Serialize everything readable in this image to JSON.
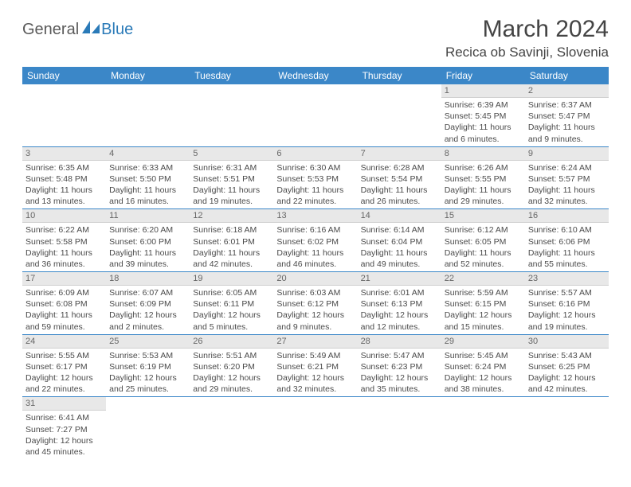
{
  "logo": {
    "part1": "General",
    "part2": "Blue"
  },
  "title": "March 2024",
  "location": "Recica ob Savinji, Slovenia",
  "headers": [
    "Sunday",
    "Monday",
    "Tuesday",
    "Wednesday",
    "Thursday",
    "Friday",
    "Saturday"
  ],
  "colors": {
    "header_bg": "#3b87c8",
    "header_text": "#ffffff",
    "daynum_bg": "#e8e8e8",
    "body_text": "#4a4a4a",
    "logo_gray": "#5a5a5a",
    "logo_blue": "#2a7ab8",
    "row_border": "#3b87c8"
  },
  "fonts": {
    "title_size": 30,
    "location_size": 17,
    "header_size": 12,
    "daynum_size": 11,
    "cell_size": 10.5
  },
  "weeks": [
    [
      null,
      null,
      null,
      null,
      null,
      {
        "n": "1",
        "sr": "Sunrise: 6:39 AM",
        "ss": "Sunset: 5:45 PM",
        "d1": "Daylight: 11 hours",
        "d2": "and 6 minutes."
      },
      {
        "n": "2",
        "sr": "Sunrise: 6:37 AM",
        "ss": "Sunset: 5:47 PM",
        "d1": "Daylight: 11 hours",
        "d2": "and 9 minutes."
      }
    ],
    [
      {
        "n": "3",
        "sr": "Sunrise: 6:35 AM",
        "ss": "Sunset: 5:48 PM",
        "d1": "Daylight: 11 hours",
        "d2": "and 13 minutes."
      },
      {
        "n": "4",
        "sr": "Sunrise: 6:33 AM",
        "ss": "Sunset: 5:50 PM",
        "d1": "Daylight: 11 hours",
        "d2": "and 16 minutes."
      },
      {
        "n": "5",
        "sr": "Sunrise: 6:31 AM",
        "ss": "Sunset: 5:51 PM",
        "d1": "Daylight: 11 hours",
        "d2": "and 19 minutes."
      },
      {
        "n": "6",
        "sr": "Sunrise: 6:30 AM",
        "ss": "Sunset: 5:53 PM",
        "d1": "Daylight: 11 hours",
        "d2": "and 22 minutes."
      },
      {
        "n": "7",
        "sr": "Sunrise: 6:28 AM",
        "ss": "Sunset: 5:54 PM",
        "d1": "Daylight: 11 hours",
        "d2": "and 26 minutes."
      },
      {
        "n": "8",
        "sr": "Sunrise: 6:26 AM",
        "ss": "Sunset: 5:55 PM",
        "d1": "Daylight: 11 hours",
        "d2": "and 29 minutes."
      },
      {
        "n": "9",
        "sr": "Sunrise: 6:24 AM",
        "ss": "Sunset: 5:57 PM",
        "d1": "Daylight: 11 hours",
        "d2": "and 32 minutes."
      }
    ],
    [
      {
        "n": "10",
        "sr": "Sunrise: 6:22 AM",
        "ss": "Sunset: 5:58 PM",
        "d1": "Daylight: 11 hours",
        "d2": "and 36 minutes."
      },
      {
        "n": "11",
        "sr": "Sunrise: 6:20 AM",
        "ss": "Sunset: 6:00 PM",
        "d1": "Daylight: 11 hours",
        "d2": "and 39 minutes."
      },
      {
        "n": "12",
        "sr": "Sunrise: 6:18 AM",
        "ss": "Sunset: 6:01 PM",
        "d1": "Daylight: 11 hours",
        "d2": "and 42 minutes."
      },
      {
        "n": "13",
        "sr": "Sunrise: 6:16 AM",
        "ss": "Sunset: 6:02 PM",
        "d1": "Daylight: 11 hours",
        "d2": "and 46 minutes."
      },
      {
        "n": "14",
        "sr": "Sunrise: 6:14 AM",
        "ss": "Sunset: 6:04 PM",
        "d1": "Daylight: 11 hours",
        "d2": "and 49 minutes."
      },
      {
        "n": "15",
        "sr": "Sunrise: 6:12 AM",
        "ss": "Sunset: 6:05 PM",
        "d1": "Daylight: 11 hours",
        "d2": "and 52 minutes."
      },
      {
        "n": "16",
        "sr": "Sunrise: 6:10 AM",
        "ss": "Sunset: 6:06 PM",
        "d1": "Daylight: 11 hours",
        "d2": "and 55 minutes."
      }
    ],
    [
      {
        "n": "17",
        "sr": "Sunrise: 6:09 AM",
        "ss": "Sunset: 6:08 PM",
        "d1": "Daylight: 11 hours",
        "d2": "and 59 minutes."
      },
      {
        "n": "18",
        "sr": "Sunrise: 6:07 AM",
        "ss": "Sunset: 6:09 PM",
        "d1": "Daylight: 12 hours",
        "d2": "and 2 minutes."
      },
      {
        "n": "19",
        "sr": "Sunrise: 6:05 AM",
        "ss": "Sunset: 6:11 PM",
        "d1": "Daylight: 12 hours",
        "d2": "and 5 minutes."
      },
      {
        "n": "20",
        "sr": "Sunrise: 6:03 AM",
        "ss": "Sunset: 6:12 PM",
        "d1": "Daylight: 12 hours",
        "d2": "and 9 minutes."
      },
      {
        "n": "21",
        "sr": "Sunrise: 6:01 AM",
        "ss": "Sunset: 6:13 PM",
        "d1": "Daylight: 12 hours",
        "d2": "and 12 minutes."
      },
      {
        "n": "22",
        "sr": "Sunrise: 5:59 AM",
        "ss": "Sunset: 6:15 PM",
        "d1": "Daylight: 12 hours",
        "d2": "and 15 minutes."
      },
      {
        "n": "23",
        "sr": "Sunrise: 5:57 AM",
        "ss": "Sunset: 6:16 PM",
        "d1": "Daylight: 12 hours",
        "d2": "and 19 minutes."
      }
    ],
    [
      {
        "n": "24",
        "sr": "Sunrise: 5:55 AM",
        "ss": "Sunset: 6:17 PM",
        "d1": "Daylight: 12 hours",
        "d2": "and 22 minutes."
      },
      {
        "n": "25",
        "sr": "Sunrise: 5:53 AM",
        "ss": "Sunset: 6:19 PM",
        "d1": "Daylight: 12 hours",
        "d2": "and 25 minutes."
      },
      {
        "n": "26",
        "sr": "Sunrise: 5:51 AM",
        "ss": "Sunset: 6:20 PM",
        "d1": "Daylight: 12 hours",
        "d2": "and 29 minutes."
      },
      {
        "n": "27",
        "sr": "Sunrise: 5:49 AM",
        "ss": "Sunset: 6:21 PM",
        "d1": "Daylight: 12 hours",
        "d2": "and 32 minutes."
      },
      {
        "n": "28",
        "sr": "Sunrise: 5:47 AM",
        "ss": "Sunset: 6:23 PM",
        "d1": "Daylight: 12 hours",
        "d2": "and 35 minutes."
      },
      {
        "n": "29",
        "sr": "Sunrise: 5:45 AM",
        "ss": "Sunset: 6:24 PM",
        "d1": "Daylight: 12 hours",
        "d2": "and 38 minutes."
      },
      {
        "n": "30",
        "sr": "Sunrise: 5:43 AM",
        "ss": "Sunset: 6:25 PM",
        "d1": "Daylight: 12 hours",
        "d2": "and 42 minutes."
      }
    ],
    [
      {
        "n": "31",
        "sr": "Sunrise: 6:41 AM",
        "ss": "Sunset: 7:27 PM",
        "d1": "Daylight: 12 hours",
        "d2": "and 45 minutes."
      },
      null,
      null,
      null,
      null,
      null,
      null
    ]
  ]
}
